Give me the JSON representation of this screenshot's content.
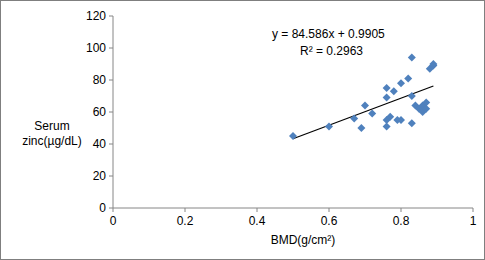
{
  "chart_data": {
    "type": "scatter",
    "x_label": "BMD(g/cm²)",
    "y_label": "Serum zinc(µg/dL)",
    "x": [
      0.5,
      0.6,
      0.67,
      0.69,
      0.7,
      0.72,
      0.76,
      0.76,
      0.76,
      0.76,
      0.77,
      0.78,
      0.79,
      0.8,
      0.8,
      0.82,
      0.83,
      0.83,
      0.83,
      0.84,
      0.85,
      0.86,
      0.86,
      0.87,
      0.87,
      0.88,
      0.89,
      0.89
    ],
    "values": [
      45,
      51,
      56,
      50,
      64,
      59,
      51,
      55,
      69,
      75,
      57,
      73,
      55,
      55,
      78,
      81,
      94,
      53,
      70,
      64,
      62,
      60,
      64,
      62,
      66,
      87,
      89,
      90
    ],
    "color": "#4f81bd",
    "marker": "diamond",
    "xlim": [
      0,
      1
    ],
    "xticks": [
      0,
      0.2,
      0.4,
      0.6,
      0.8,
      1
    ],
    "ylim": [
      0,
      120
    ],
    "yticks": [
      0,
      20,
      40,
      60,
      80,
      100,
      120
    ],
    "grid": false,
    "trendline": {
      "slope": 84.586,
      "intercept": 0.9905,
      "equation": "y = 84.586x + 0.9905",
      "r_squared_label": "R² = 0.2963"
    }
  }
}
